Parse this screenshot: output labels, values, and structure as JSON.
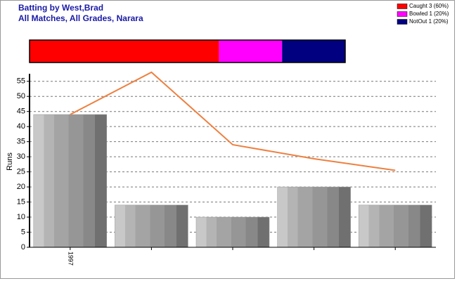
{
  "chart_data": [
    {
      "type": "stacked_hbar",
      "xlim": [
        0,
        100
      ],
      "series": [
        {
          "name": "Caught 3 (60%)",
          "color": "#ff0000",
          "values": [
            60
          ]
        },
        {
          "name": "Bowled 1 (20%)",
          "color": "#ff00ff",
          "values": [
            20
          ]
        },
        {
          "name": "NotOut 1 (20%)",
          "color": "#000080",
          "values": [
            20
          ]
        }
      ]
    },
    {
      "type": "bar",
      "title": "Batting by West,Brad",
      "subtitle": "All Matches, All Grades, Narara",
      "y_label": "Runs",
      "categories": [
        "1997",
        null,
        null,
        null,
        null
      ],
      "series": [
        {
          "type": "bar",
          "color": "#9a9a9a",
          "values": [
            44,
            14,
            10,
            20,
            14
          ]
        },
        {
          "type": "line",
          "color": "#ee8040",
          "values": [
            44,
            58,
            34,
            29.33,
            25.5
          ]
        }
      ],
      "ylim": [
        0,
        57.5
      ],
      "yticks": [
        0,
        5,
        10,
        15,
        20,
        25,
        30,
        35,
        40,
        45,
        50,
        55
      ],
      "grid": true
    }
  ]
}
